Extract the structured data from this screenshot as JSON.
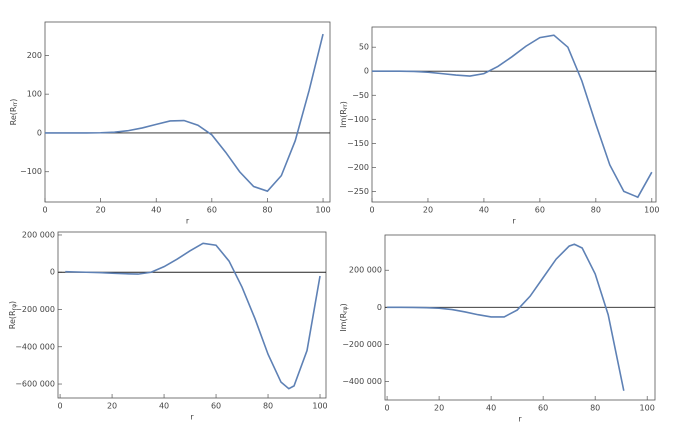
{
  "chart_data": [
    {
      "type": "line",
      "xlabel": "r",
      "ylabel": {
        "base": "Re(R",
        "sub": "rr",
        "end": ")"
      },
      "color": "#5e81b5",
      "x": [
        0,
        5,
        10,
        15,
        20,
        25,
        30,
        35,
        40,
        45,
        50,
        55,
        60,
        65,
        70,
        75,
        80,
        85,
        90,
        95,
        100
      ],
      "values": [
        0,
        0,
        0,
        0,
        0.5,
        2,
        6,
        13,
        22,
        31,
        32,
        20,
        -5,
        -50,
        -100,
        -138,
        -150,
        -110,
        -20,
        110,
        255
      ],
      "xlim": [
        0,
        102.5
      ],
      "ylim": [
        -178,
        286
      ],
      "xticks": [
        0,
        20,
        40,
        60,
        80,
        100
      ],
      "yticks": [
        {
          "value": -100,
          "label": "−100"
        },
        0,
        100,
        200
      ]
    },
    {
      "type": "line",
      "xlabel": "r",
      "ylabel": {
        "base": "Im(R",
        "sub": "rr",
        "end": ")"
      },
      "color": "#5e81b5",
      "x": [
        0,
        5,
        10,
        15,
        20,
        25,
        30,
        35,
        40,
        45,
        50,
        55,
        60,
        65,
        70,
        75,
        80,
        85,
        90,
        95,
        100
      ],
      "values": [
        0,
        0,
        0,
        -0.5,
        -2,
        -5,
        -8,
        -10,
        -5,
        10,
        30,
        52,
        70,
        75,
        50,
        -20,
        -110,
        -195,
        -250,
        -262,
        -210
      ],
      "xlim": [
        0,
        101.5
      ],
      "ylim": [
        -272,
        92
      ],
      "xticks": [
        0,
        20,
        40,
        60,
        80,
        100
      ],
      "yticks": [
        {
          "value": -250,
          "label": "−250"
        },
        {
          "value": -200,
          "label": "−200"
        },
        {
          "value": -150,
          "label": "−150"
        },
        {
          "value": -100,
          "label": "−100"
        },
        {
          "value": -50,
          "label": "−50"
        },
        0,
        50
      ]
    },
    {
      "type": "line",
      "xlabel": "r",
      "ylabel": {
        "base": "Re(R",
        "sub": "rφ",
        "end": ")"
      },
      "color": "#5e81b5",
      "x": [
        2,
        5,
        10,
        15,
        20,
        25,
        30,
        35,
        40,
        45,
        50,
        55,
        60,
        65,
        70,
        75,
        80,
        85,
        88,
        90,
        95,
        100
      ],
      "values": [
        3000,
        2000,
        0,
        -2000,
        -5000,
        -8000,
        -10000,
        0,
        30000,
        70000,
        115000,
        155000,
        145000,
        60000,
        -80000,
        -250000,
        -440000,
        -590000,
        -625000,
        -610000,
        -420000,
        -20000
      ],
      "xlim": [
        -0.8,
        102.3
      ],
      "ylim": [
        -675000,
        216000
      ],
      "xticks": [
        0,
        20,
        40,
        60,
        80,
        100
      ],
      "yticks": [
        {
          "value": -600000,
          "label": "−600 000"
        },
        {
          "value": -400000,
          "label": "−400 000"
        },
        {
          "value": -200000,
          "label": "−200 000"
        },
        0,
        {
          "value": 200000,
          "label": "200 000"
        }
      ]
    },
    {
      "type": "line",
      "xlabel": "r",
      "ylabel": {
        "base": "Im(R",
        "sub": "rφ",
        "end": ")"
      },
      "color": "#5e81b5",
      "x": [
        0,
        5,
        10,
        15,
        20,
        25,
        30,
        35,
        40,
        45,
        50,
        55,
        60,
        65,
        70,
        72,
        75,
        80,
        85,
        91
      ],
      "values": [
        0,
        0,
        -500,
        -2000,
        -5000,
        -12000,
        -25000,
        -40000,
        -52000,
        -52000,
        -15000,
        60000,
        160000,
        260000,
        330000,
        340000,
        320000,
        180000,
        -40000,
        -450000
      ],
      "xlim": [
        -0.8,
        103
      ],
      "ylim": [
        -500000,
        390000
      ],
      "xticks": [
        0,
        20,
        40,
        60,
        80,
        100
      ],
      "yticks": [
        {
          "value": -400000,
          "label": "−400 000"
        },
        {
          "value": -200000,
          "label": "−200 000"
        },
        0,
        {
          "value": 200000,
          "label": "200 000"
        }
      ]
    }
  ]
}
